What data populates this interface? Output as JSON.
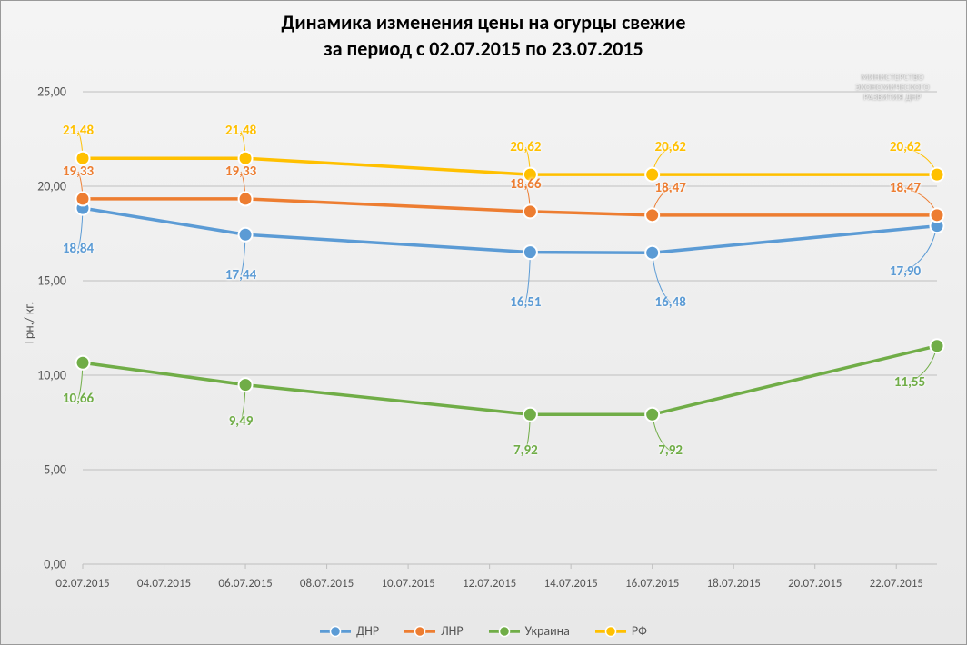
{
  "chart": {
    "type": "line",
    "title_line1": "Динамика изменения цены на огурцы свежие",
    "title_line2": "за период с 02.07.2015 по 23.07.2015",
    "title_fontsize": 22,
    "y_axis_label": "Грн./ кг.",
    "background_gradient_top": "#f4f4f4",
    "background_gradient_bottom": "#e8e8e8",
    "grid_color": "#bfbfbf",
    "ylim": [
      0,
      25
    ],
    "ytick_step": 5,
    "y_ticks": [
      {
        "v": 0,
        "label": "0,00"
      },
      {
        "v": 5,
        "label": "5,00"
      },
      {
        "v": 10,
        "label": "10,00"
      },
      {
        "v": 15,
        "label": "15,00"
      },
      {
        "v": 20,
        "label": "20,00"
      },
      {
        "v": 25,
        "label": "25,00"
      }
    ],
    "x_categories_display": [
      "02.07.2015",
      "04.07.2015",
      "06.07.2015",
      "08.07.2015",
      "10.07.2015",
      "12.07.2015",
      "14.07.2015",
      "16.07.2015",
      "18.07.2015",
      "20.07.2015",
      "22.07.2015"
    ],
    "x_data_points_actual": [
      "02.07.2015",
      "06.07.2015",
      "13.07.2015",
      "16.07.2015",
      "23.07.2015"
    ],
    "x_positions": [
      0,
      2,
      5.5,
      7,
      10.5
    ],
    "x_axis_span": 10.5,
    "marker_radius": 7.5,
    "marker_stroke": "#ffffff",
    "marker_stroke_width": 2,
    "line_width": 3.5,
    "series": [
      {
        "name": "ДНР",
        "color": "#5b9bd5",
        "values": [
          18.84,
          17.44,
          16.51,
          16.48,
          17.9
        ],
        "labels": [
          "18,84",
          "17,44",
          "16,51",
          "16,48",
          "17,90"
        ],
        "label_offsets": [
          [
            -5,
            45
          ],
          [
            -5,
            45
          ],
          [
            -5,
            55
          ],
          [
            20,
            55
          ],
          [
            -35,
            50
          ]
        ]
      },
      {
        "name": "ЛНР",
        "color": "#ed7d31",
        "values": [
          19.33,
          19.33,
          18.66,
          18.47,
          18.47
        ],
        "labels": [
          "19,33",
          "19,33",
          "18,66",
          "18,47",
          "18,47"
        ],
        "label_offsets": [
          [
            -5,
            -30
          ],
          [
            -5,
            -30
          ],
          [
            -5,
            -30
          ],
          [
            20,
            -30
          ],
          [
            -35,
            -30
          ]
        ]
      },
      {
        "name": "Украина",
        "color": "#70ad47",
        "values": [
          10.66,
          9.49,
          7.92,
          7.92,
          11.55
        ],
        "labels": [
          "10,66",
          "9,49",
          "7,92",
          "7,92",
          "11,55"
        ],
        "label_offsets": [
          [
            -5,
            40
          ],
          [
            -5,
            40
          ],
          [
            -5,
            40
          ],
          [
            20,
            40
          ],
          [
            -30,
            40
          ]
        ]
      },
      {
        "name": "РФ",
        "color": "#ffc000",
        "values": [
          21.48,
          21.48,
          20.62,
          20.62,
          20.62
        ],
        "labels": [
          "21,48",
          "21,48",
          "20,62",
          "20,62",
          "20,62"
        ],
        "label_offsets": [
          [
            -5,
            -30
          ],
          [
            -5,
            -30
          ],
          [
            -5,
            -30
          ],
          [
            20,
            -30
          ],
          [
            -35,
            -30
          ]
        ]
      }
    ],
    "watermark_lines": [
      "МИНИСТЕРСТВО",
      "ЭКОНОМИЧЕСКОГО",
      "РАЗВИТИЯ ДНР"
    ]
  }
}
